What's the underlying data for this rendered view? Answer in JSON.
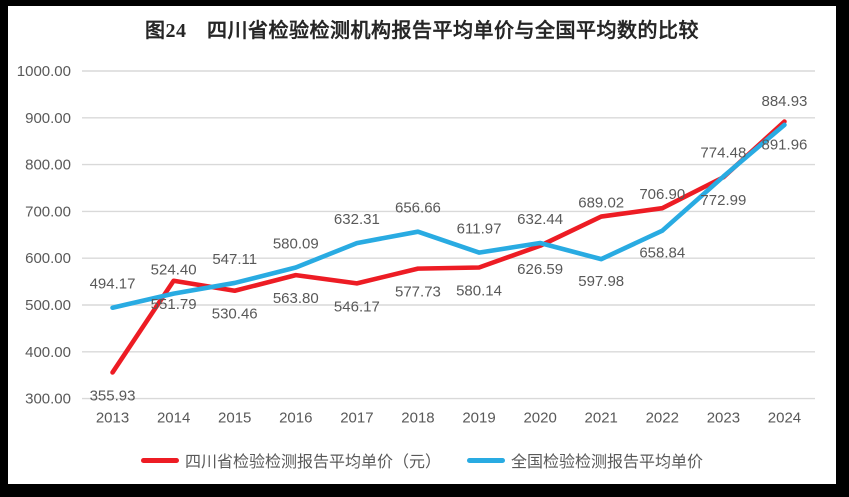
{
  "title": "图24　四川省检验检测机构报告平均单价与全国平均数的比较",
  "colors": {
    "sichuan_red": "#ED1C24",
    "national_blue": "#29ABE2",
    "gridline": "#D9D9D9",
    "axis_text": "#595959",
    "data_label_text": "#595959",
    "title_text": "#262626",
    "frame": "#000000",
    "plot_background": "#FFFFFF"
  },
  "chart_data": {
    "type": "line",
    "categories": [
      "2013",
      "2014",
      "2015",
      "2016",
      "2017",
      "2018",
      "2019",
      "2020",
      "2021",
      "2022",
      "2023",
      "2024"
    ],
    "series": [
      {
        "id": "sichuan",
        "name": "四川省检验检测报告平均单价（元）",
        "color": "#ED1C24",
        "values": [
          355.93,
          551.79,
          530.46,
          563.8,
          546.17,
          577.73,
          580.14,
          626.59,
          689.02,
          706.9,
          772.99,
          891.96
        ],
        "label_side": [
          "below",
          "below",
          "below",
          "below",
          "below",
          "below",
          "below",
          "below",
          "above",
          "above",
          "below",
          "below"
        ]
      },
      {
        "id": "national",
        "name": "全国检验检测报告平均单价",
        "color": "#29ABE2",
        "values": [
          494.17,
          524.4,
          547.11,
          580.09,
          632.31,
          656.66,
          611.97,
          632.44,
          597.98,
          658.84,
          774.48,
          884.93
        ],
        "label_side": [
          "above",
          "above",
          "above",
          "above",
          "above",
          "above",
          "above",
          "above",
          "below",
          "below",
          "above",
          "above"
        ]
      }
    ],
    "ylim": [
      300,
      1000
    ],
    "y_tick_step": 100,
    "y_tick_labels": [
      "300.00",
      "400.00",
      "500.00",
      "600.00",
      "700.00",
      "800.00",
      "900.00",
      "1000.00"
    ],
    "value_format_decimals": 2,
    "grid": true,
    "legend_position": "bottom"
  }
}
